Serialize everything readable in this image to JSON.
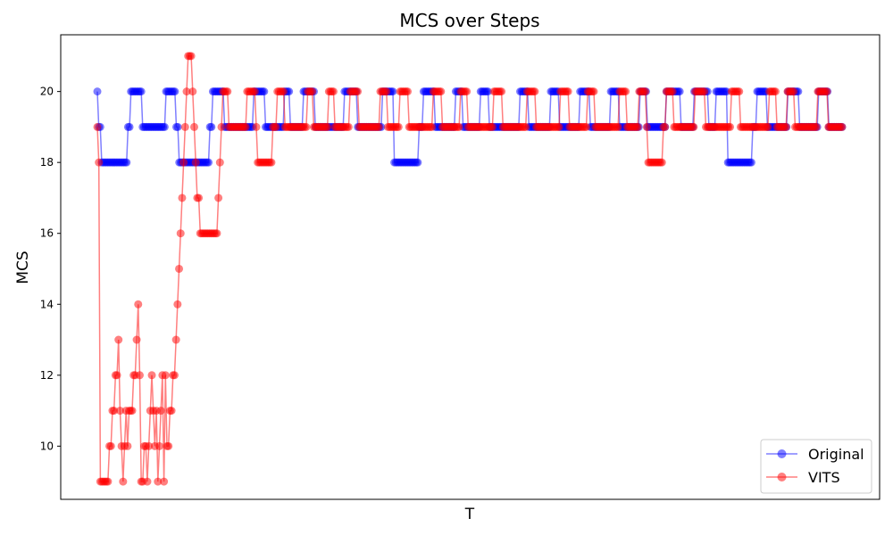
{
  "chart_data": {
    "type": "line",
    "title": "MCS over Steps",
    "xlabel": "T",
    "ylabel": "MCS",
    "ylim": [
      8.5,
      21.6
    ],
    "yticks": [
      10,
      12,
      14,
      16,
      18,
      20
    ],
    "legend_position": "bottom-right",
    "grid": false,
    "x_tick_labels": false,
    "series": [
      {
        "name": "Original",
        "color": "#0000ff",
        "values": [
          20,
          19,
          19,
          18,
          18,
          18,
          18,
          18,
          18,
          18,
          18,
          18,
          18,
          18,
          18,
          18,
          18,
          18,
          18,
          18,
          18,
          19,
          19,
          20,
          20,
          20,
          20,
          20,
          20,
          20,
          20,
          19,
          19,
          19,
          19,
          19,
          19,
          19,
          19,
          19,
          19,
          19,
          19,
          19,
          19,
          19,
          19,
          20,
          20,
          20,
          20,
          20,
          20,
          20,
          19,
          19,
          18,
          18,
          18,
          18,
          18,
          18,
          18,
          18,
          18,
          18,
          18,
          18,
          18,
          18,
          18,
          18,
          18,
          18,
          18,
          18,
          18,
          19,
          19,
          20,
          20,
          20,
          20,
          20,
          20,
          20,
          20,
          19,
          19,
          19,
          19,
          19,
          19,
          19,
          19,
          19,
          19,
          19,
          19,
          19,
          19,
          19,
          19,
          19,
          19,
          19,
          19,
          20,
          20,
          20,
          20,
          20,
          20,
          20,
          20,
          19,
          19,
          19,
          19,
          19,
          19,
          19,
          19,
          19,
          19,
          19,
          19,
          19,
          20,
          20,
          20,
          20,
          19,
          19,
          19,
          19,
          19,
          19,
          19,
          19,
          19,
          20,
          20,
          20,
          20,
          20,
          20,
          20,
          20,
          19,
          19,
          19,
          19,
          19,
          19,
          19,
          19,
          19,
          19,
          19,
          19,
          19,
          19,
          19,
          19,
          19,
          19,
          19,
          19,
          20,
          20,
          20,
          20,
          20,
          20,
          20,
          20,
          20,
          19,
          19,
          19,
          19,
          19,
          19,
          19,
          19,
          19,
          19,
          19,
          19,
          19,
          19,
          19,
          19,
          19,
          20,
          20,
          20,
          20,
          20,
          20,
          20,
          20,
          18,
          18,
          18,
          18,
          18,
          18,
          18,
          18,
          18,
          18,
          18,
          18,
          18,
          18,
          18,
          18,
          18,
          19,
          19,
          19,
          20,
          20,
          20,
          20,
          20,
          20,
          20,
          20,
          19,
          19,
          19,
          19,
          19,
          19,
          19,
          19,
          19,
          19,
          19,
          19,
          19,
          19,
          20,
          20,
          20,
          20,
          20,
          19,
          19,
          19,
          19,
          19,
          19,
          19,
          19,
          19,
          19,
          19,
          19,
          20,
          20,
          20,
          20,
          20,
          20,
          19,
          19,
          19,
          19,
          19,
          19,
          19,
          19,
          19,
          19,
          19,
          19,
          19,
          19,
          19,
          19,
          19,
          19,
          19,
          19,
          19,
          20,
          20,
          20,
          20,
          20,
          20,
          19,
          19,
          19,
          19,
          19,
          19,
          19,
          19,
          19,
          19,
          19,
          19,
          19,
          19,
          19,
          20,
          20,
          20,
          20,
          20,
          20,
          19,
          19,
          19,
          19,
          19,
          19,
          19,
          19,
          19,
          19,
          19,
          19,
          19,
          19,
          20,
          20,
          20,
          20,
          20,
          20,
          20,
          19,
          19,
          19,
          19,
          19,
          19,
          19,
          19,
          19,
          19,
          19,
          19,
          19,
          19,
          20,
          20,
          20,
          20,
          20,
          20,
          19,
          19,
          19,
          19,
          19,
          19,
          19,
          19,
          19,
          19,
          19,
          19,
          19,
          19,
          20,
          20,
          20,
          20,
          20,
          19,
          19,
          19,
          19,
          19,
          19,
          19,
          19,
          19,
          19,
          19,
          19,
          19,
          20,
          20,
          20,
          20,
          20,
          20,
          20,
          20,
          20,
          20,
          19,
          19,
          19,
          19,
          19,
          19,
          19,
          19,
          19,
          20,
          20,
          20,
          20,
          20,
          20,
          20,
          20,
          20,
          20,
          19,
          19,
          19,
          19,
          19,
          20,
          20,
          20,
          20,
          20,
          20,
          20,
          20,
          18,
          18,
          18,
          18,
          18,
          18,
          18,
          18,
          18,
          18,
          18,
          18,
          18,
          18,
          18,
          18,
          18,
          19,
          19,
          19,
          20,
          20,
          20,
          20,
          20,
          20,
          20,
          19,
          19,
          19,
          19,
          19,
          19,
          19,
          19,
          19,
          19,
          19,
          19,
          19,
          19,
          20,
          20,
          20,
          20,
          20,
          20,
          20,
          20,
          19,
          19,
          19,
          19,
          19,
          19,
          19,
          19,
          19,
          19,
          19,
          19,
          19,
          20,
          20,
          20,
          20,
          20,
          20,
          20,
          19,
          19,
          19,
          19,
          19,
          19,
          19,
          19,
          19,
          19
        ]
      },
      {
        "name": "VITS",
        "color": "#ff0000",
        "values": [
          19,
          18,
          9,
          9,
          9,
          9,
          9,
          9,
          10,
          10,
          11,
          11,
          12,
          12,
          13,
          11,
          10,
          9,
          10,
          11,
          10,
          11,
          11,
          11,
          12,
          12,
          13,
          14,
          12,
          9,
          9,
          10,
          10,
          9,
          10,
          11,
          12,
          11,
          10,
          11,
          9,
          10,
          11,
          12,
          9,
          12,
          10,
          10,
          11,
          11,
          12,
          12,
          13,
          14,
          15,
          16,
          17,
          18,
          19,
          20,
          21,
          21,
          21,
          20,
          19,
          18,
          17,
          17,
          16,
          16,
          16,
          16,
          16,
          16,
          16,
          16,
          16,
          16,
          16,
          16,
          17,
          18,
          19,
          20,
          20,
          20,
          20,
          19,
          19,
          19,
          19,
          19,
          19,
          19,
          19,
          19,
          19,
          19,
          19,
          20,
          20,
          20,
          20,
          20,
          20,
          19,
          18,
          18,
          18,
          18,
          18,
          18,
          18,
          18,
          18,
          18,
          19,
          19,
          19,
          20,
          20,
          20,
          20,
          20,
          19,
          19,
          19,
          19,
          19,
          19,
          19,
          19,
          19,
          19,
          19,
          19,
          19,
          19,
          19,
          20,
          20,
          20,
          20,
          19,
          19,
          19,
          19,
          19,
          19,
          19,
          19,
          19,
          19,
          20,
          20,
          20,
          20,
          19,
          19,
          19,
          19,
          19,
          19,
          19,
          19,
          19,
          19,
          20,
          20,
          20,
          20,
          20,
          20,
          19,
          19,
          19,
          19,
          19,
          19,
          19,
          19,
          19,
          19,
          19,
          19,
          19,
          19,
          20,
          20,
          20,
          20,
          20,
          19,
          19,
          19,
          19,
          19,
          19,
          19,
          19,
          20,
          20,
          20,
          20,
          20,
          20,
          19,
          19,
          19,
          19,
          19,
          19,
          19,
          19,
          19,
          19,
          19,
          19,
          19,
          19,
          19,
          19,
          20,
          20,
          20,
          20,
          20,
          20,
          19,
          19,
          19,
          19,
          19,
          19,
          19,
          19,
          19,
          19,
          19,
          19,
          20,
          20,
          20,
          20,
          20,
          19,
          19,
          19,
          19,
          19,
          19,
          19,
          19,
          19,
          19,
          19,
          19,
          19,
          19,
          19,
          19,
          19,
          20,
          20,
          20,
          20,
          20,
          20,
          19,
          19,
          19,
          19,
          19,
          19,
          19,
          19,
          19,
          19,
          19,
          19,
          19,
          19,
          19,
          19,
          20,
          20,
          20,
          20,
          20,
          20,
          19,
          19,
          19,
          19,
          19,
          19,
          19,
          19,
          19,
          19,
          19,
          19,
          19,
          19,
          19,
          19,
          20,
          20,
          20,
          20,
          20,
          20,
          19,
          19,
          19,
          19,
          19,
          19,
          19,
          19,
          19,
          19,
          19,
          19,
          20,
          20,
          20,
          20,
          20,
          19,
          19,
          19,
          19,
          19,
          19,
          19,
          19,
          19,
          19,
          19,
          19,
          19,
          19,
          19,
          19,
          20,
          20,
          20,
          20,
          20,
          19,
          19,
          19,
          19,
          19,
          19,
          19,
          19,
          20,
          20,
          20,
          20,
          20,
          19,
          18,
          18,
          18,
          18,
          18,
          18,
          18,
          18,
          18,
          18,
          19,
          19,
          20,
          20,
          20,
          20,
          20,
          19,
          19,
          19,
          19,
          19,
          19,
          19,
          19,
          19,
          19,
          19,
          19,
          19,
          19,
          20,
          20,
          20,
          20,
          20,
          20,
          20,
          19,
          19,
          19,
          19,
          19,
          19,
          19,
          19,
          19,
          19,
          19,
          19,
          19,
          19,
          19,
          19,
          19,
          20,
          20,
          20,
          20,
          20,
          20,
          19,
          19,
          19,
          19,
          19,
          19,
          19,
          19,
          19,
          19,
          19,
          19,
          19,
          19,
          19,
          19,
          19,
          19,
          19,
          20,
          20,
          20,
          20,
          20,
          19,
          19,
          19,
          19,
          19,
          19,
          19,
          20,
          20,
          20,
          20,
          20,
          19,
          19,
          19,
          19,
          19,
          19,
          19,
          19,
          19,
          19,
          19,
          19,
          19,
          19,
          19,
          20,
          20,
          20,
          20,
          20,
          20,
          20,
          19,
          19,
          19,
          19,
          19,
          19,
          19,
          19,
          19,
          19
        ]
      }
    ]
  }
}
